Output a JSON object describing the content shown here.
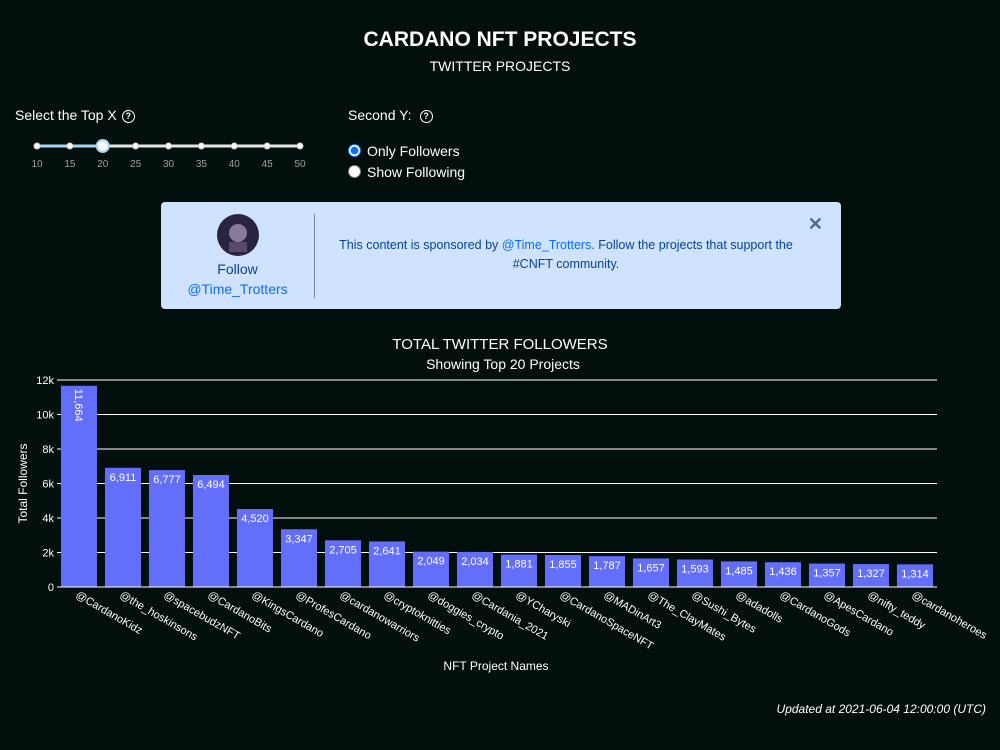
{
  "header": {
    "title": "CARDANO NFT PROJECTS",
    "subtitle": "TWITTER PROJECTS"
  },
  "controls": {
    "slider": {
      "label": "Select the Top X",
      "ticks": [
        10,
        15,
        20,
        25,
        30,
        35,
        40,
        45,
        50
      ],
      "selected": 20
    },
    "second_y": {
      "label": "Second Y:",
      "options": [
        {
          "label": "Only Followers",
          "checked": true
        },
        {
          "label": "Show Following",
          "checked": false
        }
      ]
    }
  },
  "sponsor": {
    "follow": "Follow",
    "handle": "@Time_Trotters",
    "message_prefix": "This content is sponsored by ",
    "message_link": "@Time_Trotters",
    "message_suffix": ". Follow the projects that support the #CNFT community."
  },
  "chart_data": {
    "type": "bar",
    "title": "TOTAL TWITTER FOLLOWERS",
    "subtitle": "Showing Top 20 Projects",
    "xlabel": "NFT Project Names",
    "ylabel": "Total Followers",
    "categories": [
      "@CardanoKidz",
      "@the_hoskinsons",
      "@spacebudzNFT",
      "@CardanoBits",
      "@KingsCardano",
      "@ProfesCardano",
      "@cardanowarriors",
      "@cryptoknitties",
      "@doggies_crypto",
      "@Cardania_2021",
      "@YCharyski",
      "@CardanoSpaceNFT",
      "@MADinArt3",
      "@The_ClayMates",
      "@Sushi_Bytes",
      "@adadolls",
      "@CardanoGods",
      "@ApesCardano",
      "@nifty_teddy",
      "@cardanoheroes"
    ],
    "values": [
      11664,
      6911,
      6777,
      6494,
      4520,
      3347,
      2705,
      2641,
      2049,
      2034,
      1881,
      1855,
      1787,
      1657,
      1593,
      1485,
      1436,
      1357,
      1327,
      1314
    ],
    "value_labels": [
      "11,664",
      "6,911",
      "6,777",
      "6,494",
      "4,520",
      "3,347",
      "2,705",
      "2,641",
      "2,049",
      "2,034",
      "1,881",
      "1,855",
      "1,787",
      "1,657",
      "1,593",
      "1,485",
      "1,436",
      "1,357",
      "1,327",
      "1,314"
    ],
    "color": "#636efa",
    "ylim": [
      0,
      12000
    ],
    "yticks": [
      0,
      {
        "value": 2000,
        "label": "2k"
      },
      {
        "value": 4000,
        "label": "4k"
      },
      {
        "value": 6000,
        "label": "6k"
      },
      {
        "value": 8000,
        "label": "8k"
      },
      {
        "value": 10000,
        "label": "10k"
      },
      {
        "value": 12000,
        "label": "12k"
      }
    ],
    "grid": true
  },
  "footer": {
    "updated": "Updated at 2021-06-04 12:00:00 (UTC)"
  }
}
